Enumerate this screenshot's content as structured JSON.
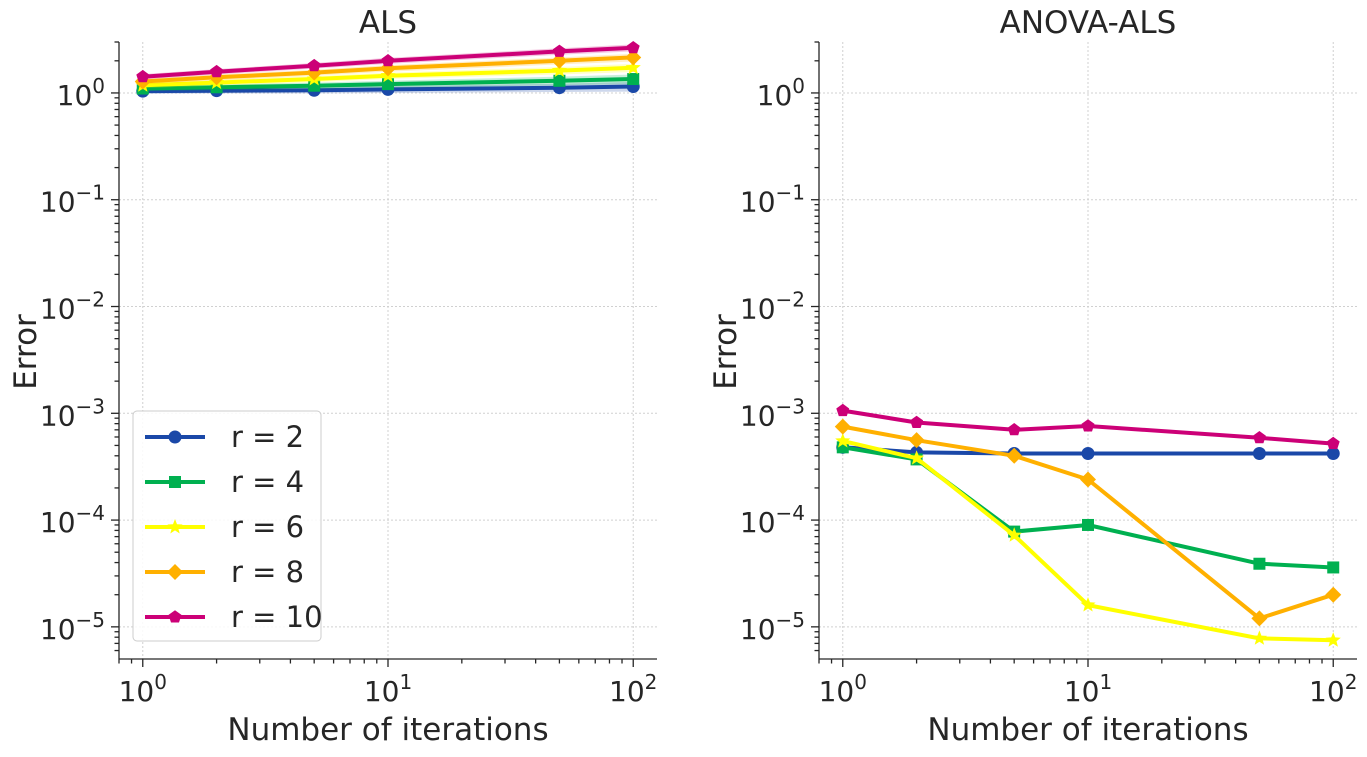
{
  "chart_data": [
    {
      "type": "line",
      "title": "ALS",
      "xlabel": "Number of iterations",
      "ylabel": "Error",
      "xscale": "log",
      "yscale": "log",
      "xlim": [
        0.8,
        125
      ],
      "ylim": [
        5e-06,
        3
      ],
      "grid": true,
      "legend": "lower-left",
      "x": [
        1,
        2,
        5,
        10,
        50,
        100
      ],
      "series": [
        {
          "name": "r = 2",
          "color": "#1a48a8",
          "marker": "circle",
          "values": [
            1.04,
            1.05,
            1.06,
            1.08,
            1.12,
            1.15
          ],
          "band": [
            0.06,
            0.06,
            0.07,
            0.08,
            0.1,
            0.12
          ]
        },
        {
          "name": "r = 4",
          "color": "#00b050",
          "marker": "square",
          "values": [
            1.1,
            1.13,
            1.17,
            1.21,
            1.3,
            1.35
          ],
          "band": [
            0.06,
            0.07,
            0.08,
            0.09,
            0.12,
            0.14
          ]
        },
        {
          "name": "r = 6",
          "color": "#ffff00",
          "marker": "star",
          "values": [
            1.18,
            1.25,
            1.35,
            1.45,
            1.62,
            1.72
          ],
          "band": [
            0.07,
            0.08,
            0.09,
            0.1,
            0.13,
            0.15
          ]
        },
        {
          "name": "r = 8",
          "color": "#ffb000",
          "marker": "diamond",
          "values": [
            1.28,
            1.4,
            1.55,
            1.7,
            2.0,
            2.15
          ],
          "band": [
            0.08,
            0.09,
            0.1,
            0.12,
            0.15,
            0.18
          ]
        },
        {
          "name": "r = 10",
          "color": "#cc0077",
          "marker": "pentagon",
          "values": [
            1.42,
            1.58,
            1.8,
            2.0,
            2.45,
            2.65
          ],
          "band": [
            0.08,
            0.09,
            0.11,
            0.13,
            0.17,
            0.2
          ]
        }
      ]
    },
    {
      "type": "line",
      "title": "ANOVA-ALS",
      "xlabel": "Number of iterations",
      "ylabel": "Error",
      "xscale": "log",
      "yscale": "log",
      "xlim": [
        0.8,
        125
      ],
      "ylim": [
        5e-06,
        3
      ],
      "grid": true,
      "x": [
        1,
        2,
        5,
        10,
        50,
        100
      ],
      "series": [
        {
          "name": "r = 2",
          "color": "#1a48a8",
          "marker": "circle",
          "values": [
            0.00048,
            0.00043,
            0.00042,
            0.00042,
            0.00042,
            0.00042
          ]
        },
        {
          "name": "r = 4",
          "color": "#00b050",
          "marker": "square",
          "values": [
            0.00048,
            0.00037,
            7.8e-05,
            9e-05,
            3.9e-05,
            3.6e-05
          ]
        },
        {
          "name": "r = 6",
          "color": "#ffff00",
          "marker": "star",
          "values": [
            0.00055,
            0.00038,
            7.2e-05,
            1.6e-05,
            7.8e-06,
            7.5e-06
          ]
        },
        {
          "name": "r = 8",
          "color": "#ffb000",
          "marker": "diamond",
          "values": [
            0.00075,
            0.00056,
            0.0004,
            0.00024,
            1.2e-05,
            2e-05
          ]
        },
        {
          "name": "r = 10",
          "color": "#cc0077",
          "marker": "pentagon",
          "values": [
            0.00106,
            0.00082,
            0.0007,
            0.00076,
            0.00059,
            0.00052
          ]
        }
      ]
    }
  ],
  "tick_labels": {
    "x": [
      {
        "base": "10",
        "exp": "0"
      },
      {
        "base": "10",
        "exp": "1"
      },
      {
        "base": "10",
        "exp": "2"
      }
    ],
    "y": [
      {
        "base": "10",
        "exp": "0"
      },
      {
        "base": "10",
        "exp": "−1"
      },
      {
        "base": "10",
        "exp": "−2"
      },
      {
        "base": "10",
        "exp": "−3"
      },
      {
        "base": "10",
        "exp": "−4"
      },
      {
        "base": "10",
        "exp": "−5"
      }
    ]
  }
}
